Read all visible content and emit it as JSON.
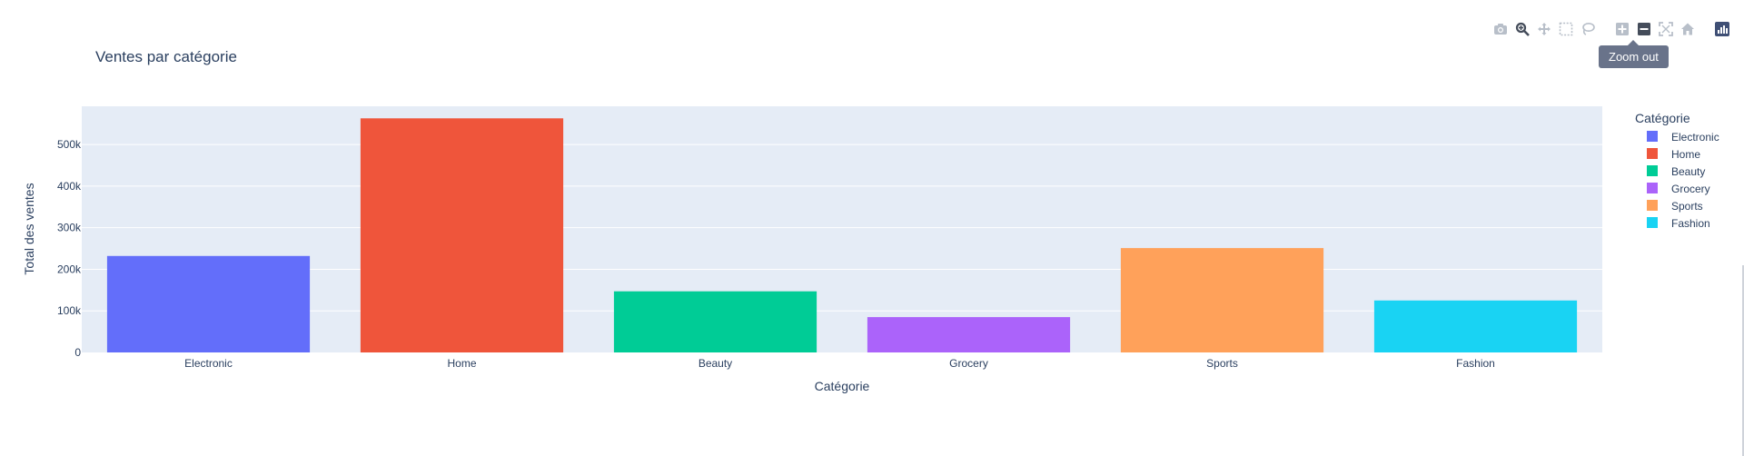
{
  "modebar": {
    "icons": [
      "camera-icon",
      "zoom-icon",
      "pan-icon",
      "box-select-icon",
      "lasso-icon",
      "zoom-in-icon",
      "zoom-out-icon",
      "autoscale-icon",
      "home-icon",
      "plotly-logo-icon"
    ],
    "active": "zoom-out-icon",
    "tooltip": "Zoom out"
  },
  "chart_data": {
    "type": "bar",
    "title": "Ventes par catégorie",
    "xlabel": "Catégorie",
    "ylabel": "Total des ventes",
    "categories": [
      "Electronic",
      "Home",
      "Beauty",
      "Grocery",
      "Sports",
      "Fashion"
    ],
    "values": [
      232000,
      563000,
      147000,
      85000,
      251000,
      125000
    ],
    "colors": [
      "#636efa",
      "#ef553b",
      "#00cc96",
      "#ab63fa",
      "#ffa15a",
      "#19d3f3"
    ],
    "ylim": [
      0,
      592000
    ],
    "yticks": [
      0,
      100000,
      200000,
      300000,
      400000,
      500000
    ],
    "ytick_labels": [
      "0",
      "100k",
      "200k",
      "300k",
      "400k",
      "500k"
    ],
    "grid": true,
    "legend": {
      "title": "Catégorie",
      "placement": "right",
      "entries": [
        "Electronic",
        "Home",
        "Beauty",
        "Grocery",
        "Sports",
        "Fashion"
      ]
    },
    "plot_bg": "#e5ecf6",
    "text_color": "#2a3f5f"
  }
}
